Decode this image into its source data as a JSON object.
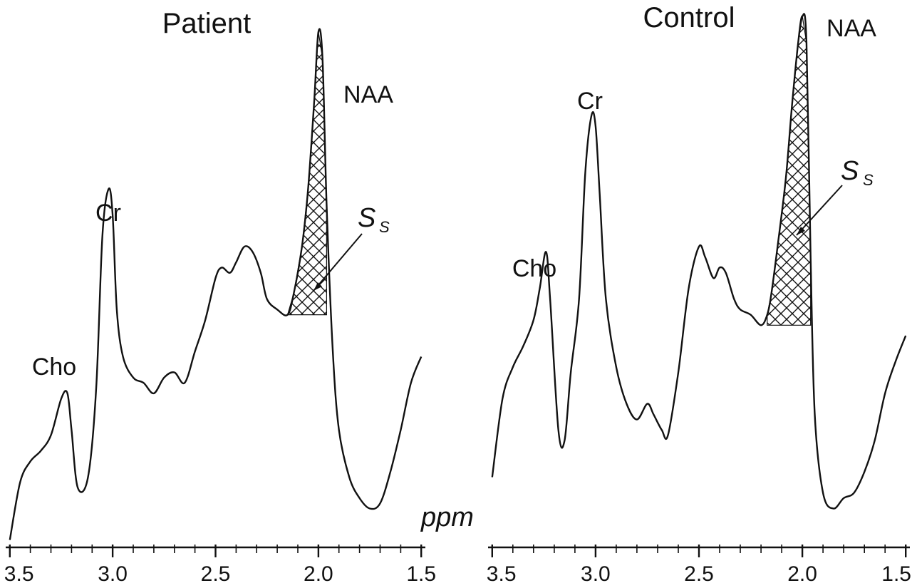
{
  "chart_data": [
    {
      "type": "line",
      "title": "Patient",
      "xlabel": "ppm",
      "ylabel": "",
      "x_reversed": true,
      "xlim": [
        3.52,
        1.48
      ],
      "ylim": [
        0,
        1
      ],
      "grid": false,
      "x_ticks": [
        "3.5",
        "3.0",
        "2.5",
        "2.0",
        "1.5"
      ],
      "shaded_region": {
        "label": "S",
        "label_sub": "S",
        "x_range": [
          2.15,
          1.95
        ],
        "baseline_y": 0.44,
        "pattern": "crosshatch"
      },
      "peak_labels": [
        {
          "text": "Cho",
          "x": 3.23
        },
        {
          "text": "Cr",
          "x": 3.0
        },
        {
          "text": "NAA",
          "x": 2.0
        }
      ],
      "series": [
        {
          "x": [
            3.5,
            3.45,
            3.4,
            3.35,
            3.3,
            3.25,
            3.22,
            3.2,
            3.17,
            3.12,
            3.08,
            3.05,
            3.02,
            3.0,
            2.98,
            2.95,
            2.9,
            2.85,
            2.8,
            2.75,
            2.7,
            2.65,
            2.6,
            2.55,
            2.5,
            2.47,
            2.43,
            2.4,
            2.36,
            2.32,
            2.28,
            2.25,
            2.2,
            2.15,
            2.12,
            2.08,
            2.05,
            2.02,
            2.0,
            1.98,
            1.96,
            1.93,
            1.9,
            1.85,
            1.8,
            1.75,
            1.7,
            1.65,
            1.6,
            1.55,
            1.5
          ],
          "y": [
            0.01,
            0.12,
            0.16,
            0.18,
            0.21,
            0.28,
            0.29,
            0.22,
            0.11,
            0.13,
            0.3,
            0.59,
            0.68,
            0.63,
            0.45,
            0.36,
            0.32,
            0.31,
            0.29,
            0.32,
            0.33,
            0.31,
            0.37,
            0.43,
            0.51,
            0.53,
            0.52,
            0.54,
            0.57,
            0.56,
            0.52,
            0.47,
            0.45,
            0.44,
            0.48,
            0.57,
            0.68,
            0.85,
            0.98,
            0.93,
            0.65,
            0.37,
            0.22,
            0.13,
            0.09,
            0.07,
            0.08,
            0.14,
            0.22,
            0.31,
            0.36
          ]
        }
      ]
    },
    {
      "type": "line",
      "title": "Control",
      "xlabel": "",
      "ylabel": "",
      "x_reversed": true,
      "xlim": [
        3.52,
        1.48
      ],
      "ylim": [
        0,
        1
      ],
      "grid": false,
      "x_ticks": [
        "3.5",
        "3.0",
        "2.5",
        "2.0",
        "1.5"
      ],
      "shaded_region": {
        "label": "S",
        "label_sub": "S",
        "x_range": [
          2.18,
          1.95
        ],
        "baseline_y": 0.42,
        "pattern": "crosshatch"
      },
      "peak_labels": [
        {
          "text": "Cho",
          "x": 3.25
        },
        {
          "text": "Cr",
          "x": 3.0
        },
        {
          "text": "NAA",
          "x": 2.0
        }
      ],
      "series": [
        {
          "x": [
            3.5,
            3.45,
            3.4,
            3.35,
            3.3,
            3.27,
            3.24,
            3.22,
            3.18,
            3.15,
            3.12,
            3.08,
            3.05,
            3.02,
            3.0,
            2.98,
            2.95,
            2.9,
            2.85,
            2.8,
            2.75,
            2.72,
            2.68,
            2.65,
            2.6,
            2.55,
            2.5,
            2.47,
            2.43,
            2.4,
            2.37,
            2.33,
            2.3,
            2.25,
            2.2,
            2.17,
            2.15,
            2.12,
            2.08,
            2.05,
            2.02,
            2.0,
            1.98,
            1.96,
            1.94,
            1.9,
            1.85,
            1.8,
            1.75,
            1.7,
            1.65,
            1.6,
            1.55,
            1.5
          ],
          "y": [
            0.13,
            0.28,
            0.34,
            0.38,
            0.43,
            0.49,
            0.56,
            0.47,
            0.22,
            0.2,
            0.33,
            0.47,
            0.71,
            0.82,
            0.8,
            0.67,
            0.47,
            0.34,
            0.27,
            0.24,
            0.27,
            0.25,
            0.22,
            0.21,
            0.33,
            0.49,
            0.57,
            0.55,
            0.51,
            0.53,
            0.52,
            0.47,
            0.45,
            0.44,
            0.42,
            0.44,
            0.48,
            0.57,
            0.7,
            0.84,
            0.96,
            1.01,
            0.96,
            0.55,
            0.25,
            0.1,
            0.07,
            0.09,
            0.1,
            0.14,
            0.2,
            0.29,
            0.35,
            0.4
          ]
        }
      ]
    }
  ]
}
